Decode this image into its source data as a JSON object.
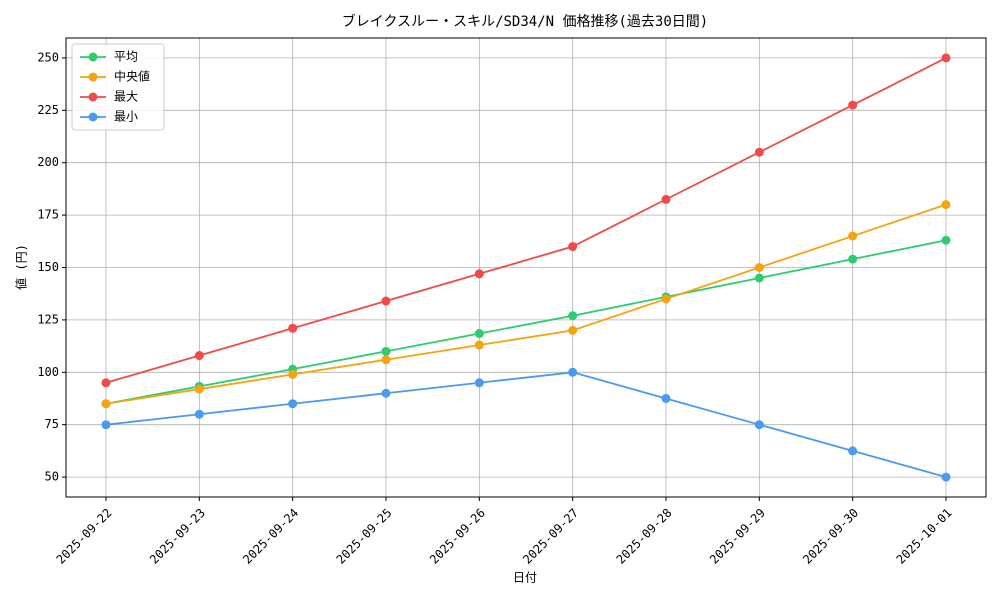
{
  "chart_data": {
    "type": "line",
    "title": "ブレイクスルー・スキル/SD34/N 価格推移(過去30日間)",
    "x_label": "日付",
    "y_label": "値 (円)",
    "categories": [
      "2025-09-22",
      "2025-09-23",
      "2025-09-24",
      "2025-09-25",
      "2025-09-26",
      "2025-09-27",
      "2025-09-28",
      "2025-09-29",
      "2025-09-30",
      "2025-10-01"
    ],
    "series": [
      {
        "name": "平均",
        "color": "#2ecc71",
        "values": [
          85,
          93.3,
          101.5,
          110,
          118.5,
          127,
          136,
          145,
          154,
          163
        ]
      },
      {
        "name": "中央値",
        "color": "#f5a30f",
        "values": [
          85,
          92,
          99,
          106,
          113,
          120,
          135,
          150,
          165,
          180
        ]
      },
      {
        "name": "最大",
        "color": "#ef4b4b",
        "values": [
          95,
          108,
          121,
          134,
          147,
          160,
          182.5,
          205,
          227.5,
          250
        ]
      },
      {
        "name": "最小",
        "color": "#4a9af0",
        "values": [
          75,
          80,
          85,
          90,
          95,
          100,
          87.5,
          75,
          62.5,
          50
        ]
      }
    ],
    "ylim": [
      40.5,
      259.5
    ],
    "yticks": [
      50,
      75,
      100,
      125,
      150,
      175,
      200,
      225,
      250
    ],
    "grid": true,
    "legend": "upper-left"
  }
}
